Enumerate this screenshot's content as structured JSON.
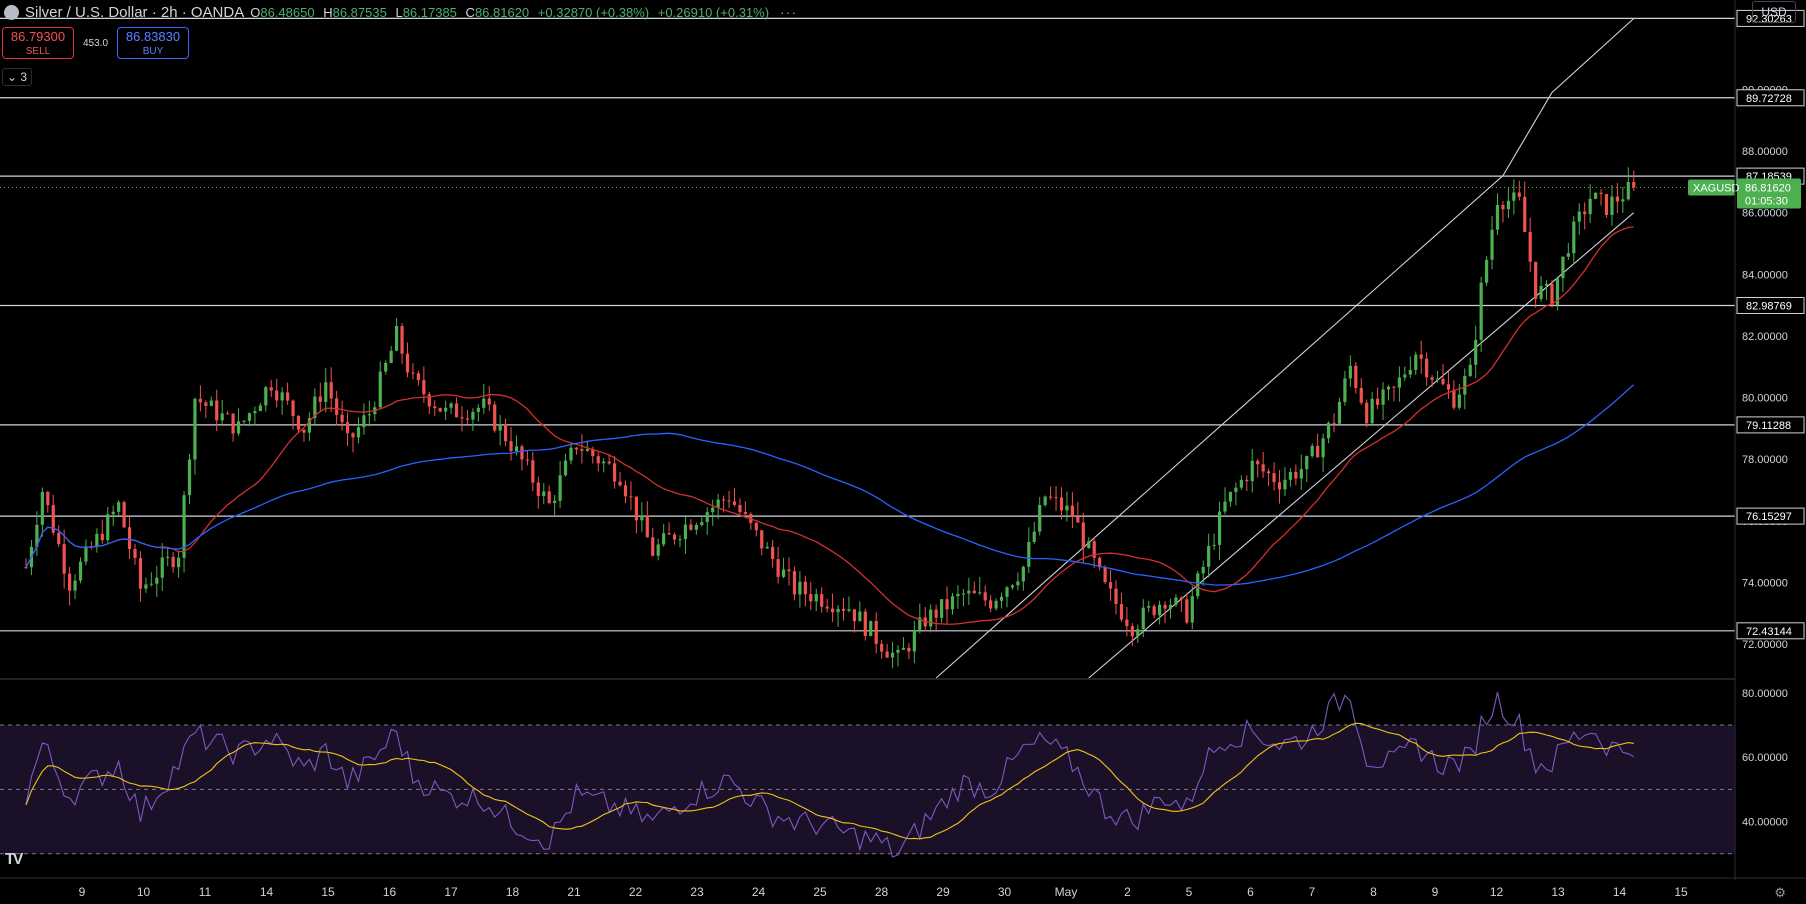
{
  "header": {
    "title": "Silver / U.S. Dollar · 2h · OANDA",
    "open_label": "O",
    "open": "86.48650",
    "high_label": "H",
    "high": "86.87535",
    "low_label": "L",
    "low": "86.17385",
    "close_label": "C",
    "close": "86.81620",
    "change": "+0.32870 (+0.38%)",
    "change2": "+0.26910 (+0.31%)",
    "more": "···"
  },
  "trade": {
    "sell_price": "86.79300",
    "sell_label": "SELL",
    "spread": "453.0",
    "buy_price": "86.83830",
    "buy_label": "BUY"
  },
  "indicators_toggle": "⌄ 3",
  "currency": "USD",
  "colors": {
    "up": "#4caf50",
    "down": "#ef5350",
    "ma_fast": "#d32f2f",
    "ma_slow": "#2962ff",
    "rsi": "#7e57c2",
    "rsi_ma": "#f0c419",
    "level": "#d1d4dc",
    "symbol_tag": "#4caf50"
  },
  "chart_data": {
    "type": "candlestick",
    "symbol": "XAGUSD",
    "last_price": "86.81620",
    "countdown": "01:05:30",
    "ylim": [
      70.9,
      92.9
    ],
    "y_ticks": [
      72,
      74,
      76,
      78,
      80,
      82,
      84,
      86,
      88,
      90
    ],
    "y_tick_labels": [
      "72.00000",
      "74.00000",
      "76.00000",
      "78.00000",
      "80.00000",
      "82.00000",
      "84.00000",
      "86.00000",
      "88.00000",
      "90.00000"
    ],
    "x_tick_labels": [
      "9",
      "10",
      "11",
      "14",
      "15",
      "16",
      "17",
      "18",
      "21",
      "22",
      "23",
      "24",
      "25",
      "28",
      "29",
      "30",
      "May",
      "2",
      "5",
      "6",
      "7",
      "8",
      "9",
      "12",
      "13",
      "14",
      "15"
    ],
    "horizontal_levels": [
      "92.30263",
      "89.72728",
      "87.18539",
      "82.98769",
      "79.11288",
      "76.15297",
      "72.43144"
    ],
    "price_path": [
      [
        0,
        74.5
      ],
      [
        3,
        77.0
      ],
      [
        8,
        74.0
      ],
      [
        17,
        76.5
      ],
      [
        21,
        73.8
      ],
      [
        28,
        75.0
      ],
      [
        31,
        80.0
      ],
      [
        39,
        79.0
      ],
      [
        45,
        80.5
      ],
      [
        51,
        79.0
      ],
      [
        55,
        80.5
      ],
      [
        59,
        78.5
      ],
      [
        63,
        79.5
      ],
      [
        68,
        82.0
      ],
      [
        71,
        80.5
      ],
      [
        77,
        79.5
      ],
      [
        84,
        79.7
      ],
      [
        89,
        78.5
      ],
      [
        96,
        76.5
      ],
      [
        101,
        78.5
      ],
      [
        109,
        77.5
      ],
      [
        115,
        75.0
      ],
      [
        122,
        76.0
      ],
      [
        129,
        76.8
      ],
      [
        136,
        75.0
      ],
      [
        141,
        73.8
      ],
      [
        146,
        73.5
      ],
      [
        151,
        73.2
      ],
      [
        156,
        72.2
      ],
      [
        160,
        71.5
      ],
      [
        165,
        72.8
      ],
      [
        172,
        73.6
      ],
      [
        177,
        73.4
      ],
      [
        183,
        74.5
      ],
      [
        187,
        76.8
      ],
      [
        192,
        76.2
      ],
      [
        198,
        73.8
      ],
      [
        203,
        72.6
      ],
      [
        209,
        73.5
      ],
      [
        213,
        73.0
      ],
      [
        216,
        74.5
      ],
      [
        220,
        76.5
      ],
      [
        225,
        77.8
      ],
      [
        230,
        77.3
      ],
      [
        235,
        77.8
      ],
      [
        240,
        79.3
      ],
      [
        243,
        81.0
      ],
      [
        246,
        79.5
      ],
      [
        251,
        80.2
      ],
      [
        255,
        81.5
      ],
      [
        259,
        80.5
      ],
      [
        262,
        80.0
      ],
      [
        265,
        80.8
      ],
      [
        267,
        83.5
      ],
      [
        270,
        86.5
      ],
      [
        274,
        86.3
      ],
      [
        277,
        83.5
      ],
      [
        280,
        83.3
      ],
      [
        283,
        85.0
      ],
      [
        287,
        86.5
      ],
      [
        290,
        86.2
      ],
      [
        293,
        86.6
      ],
      [
        295,
        86.8
      ]
    ],
    "rsi_path": [
      [
        0,
        48
      ],
      [
        3,
        64
      ],
      [
        8,
        48
      ],
      [
        17,
        58
      ],
      [
        21,
        42
      ],
      [
        28,
        58
      ],
      [
        31,
        67
      ],
      [
        39,
        61
      ],
      [
        45,
        66
      ],
      [
        51,
        56
      ],
      [
        55,
        62
      ],
      [
        59,
        52
      ],
      [
        63,
        58
      ],
      [
        68,
        68
      ],
      [
        71,
        54
      ],
      [
        77,
        48
      ],
      [
        84,
        47
      ],
      [
        89,
        40
      ],
      [
        96,
        34
      ],
      [
        101,
        48
      ],
      [
        109,
        44
      ],
      [
        115,
        40
      ],
      [
        122,
        48
      ],
      [
        129,
        53
      ],
      [
        136,
        43
      ],
      [
        141,
        40
      ],
      [
        146,
        39
      ],
      [
        151,
        36
      ],
      [
        156,
        34
      ],
      [
        160,
        30
      ],
      [
        165,
        40
      ],
      [
        172,
        52
      ],
      [
        177,
        50
      ],
      [
        183,
        62
      ],
      [
        187,
        65
      ],
      [
        192,
        58
      ],
      [
        198,
        44
      ],
      [
        203,
        40
      ],
      [
        209,
        48
      ],
      [
        213,
        44
      ],
      [
        216,
        58
      ],
      [
        220,
        66
      ],
      [
        225,
        68
      ],
      [
        230,
        64
      ],
      [
        235,
        66
      ],
      [
        240,
        76
      ],
      [
        243,
        80
      ],
      [
        246,
        60
      ],
      [
        251,
        58
      ],
      [
        255,
        64
      ],
      [
        259,
        58
      ],
      [
        262,
        58
      ],
      [
        265,
        60
      ],
      [
        267,
        70
      ],
      [
        270,
        78
      ],
      [
        274,
        70
      ],
      [
        277,
        58
      ],
      [
        280,
        58
      ],
      [
        283,
        65
      ],
      [
        287,
        69
      ],
      [
        290,
        64
      ],
      [
        293,
        62
      ],
      [
        295,
        64
      ]
    ],
    "rsi_ylim": [
      24,
      84
    ],
    "rsi_ticks": [
      40,
      60,
      80
    ],
    "rsi_tick_labels": [
      "40.00000",
      "60.00000",
      "80.00000"
    ],
    "rsi_bands": [
      30,
      50,
      70
    ],
    "channel": {
      "upper": [
        [
          167,
          70.9
        ],
        [
          271,
          87.2
        ],
        [
          280,
          89.9
        ],
        [
          295,
          92.3
        ]
      ],
      "lower": [
        [
          195,
          70.9
        ],
        [
          295,
          86.0
        ]
      ]
    }
  }
}
